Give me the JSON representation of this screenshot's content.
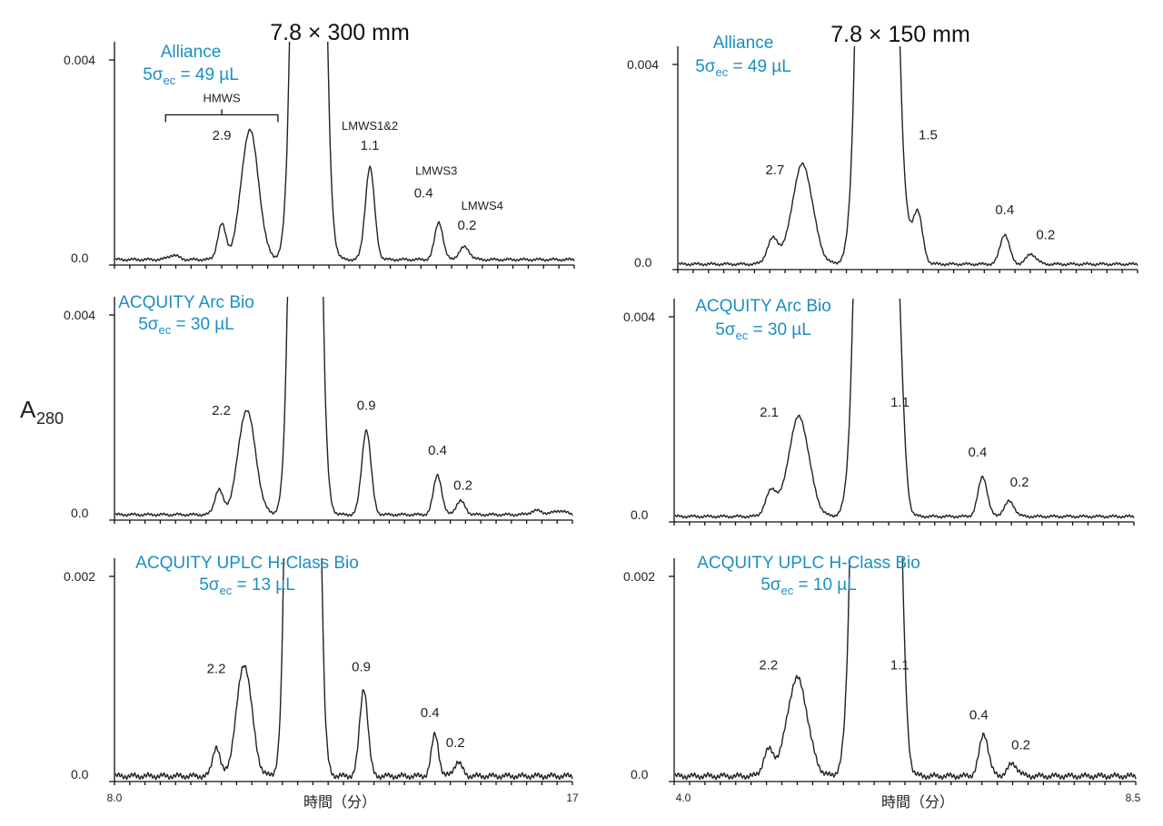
{
  "figure": {
    "y_axis_label": "A",
    "y_axis_label_sub": "280",
    "columns": [
      {
        "title": "7.8 × 300 mm",
        "x_axis_label": "時間（分）",
        "x_ticks": [
          "8.0",
          "17"
        ]
      },
      {
        "title": "7.8 × 150 mm",
        "x_axis_label": "時間（分）",
        "x_ticks": [
          "4.0",
          "8.5"
        ]
      }
    ]
  },
  "chart_data": [
    {
      "type": "line",
      "column": "7.8 × 300 mm",
      "system": "Alliance",
      "dispersion_prefix": "5σ",
      "dispersion_sub": "ec",
      "dispersion_value": " = 49 µL",
      "xlim": [
        8.0,
        17
      ],
      "ylim": [
        0.0,
        0.004
      ],
      "yticks": [
        "0.004",
        "0.0"
      ],
      "peaks": [
        {
          "x": 9.15,
          "height": 9e-05,
          "width": 0.1
        },
        {
          "x": 10.1,
          "height": 0.0007,
          "width": 0.08
        },
        {
          "x": 10.65,
          "height": 0.0026,
          "width": 0.17
        },
        {
          "x": 11.8,
          "height": 0.05,
          "width": 0.17
        },
        {
          "x": 13.0,
          "height": 0.00185,
          "width": 0.09
        },
        {
          "x": 14.35,
          "height": 0.00075,
          "width": 0.08
        },
        {
          "x": 14.85,
          "height": 0.00025,
          "width": 0.1
        }
      ],
      "peak_labels": [
        {
          "text": "2.9",
          "x": 10.1,
          "y": 0.0024
        },
        {
          "text": "LMWS1&2",
          "x": 13.0,
          "y": 0.0026,
          "style": "name"
        },
        {
          "text": "1.1",
          "x": 13.0,
          "y": 0.0022
        },
        {
          "text": "LMWS3",
          "x": 14.3,
          "y": 0.0017,
          "style": "name"
        },
        {
          "text": "0.4",
          "x": 14.05,
          "y": 0.00125
        },
        {
          "text": "LMWS4",
          "x": 15.2,
          "y": 0.001,
          "style": "name"
        },
        {
          "text": "0.2",
          "x": 14.9,
          "y": 0.0006
        }
      ],
      "bracket": {
        "label": "HMWS",
        "x_start": 9.0,
        "x_end": 11.2,
        "y": 0.0029
      }
    },
    {
      "type": "line",
      "column": "7.8 × 150 mm",
      "system": "Alliance",
      "dispersion_prefix": "5σ",
      "dispersion_sub": "ec",
      "dispersion_value": " = 49 µL",
      "xlim": [
        4.0,
        8.5
      ],
      "ylim": [
        0.0,
        0.004
      ],
      "yticks": [
        "0.004",
        "0.0"
      ],
      "peaks": [
        {
          "x": 4.93,
          "height": 0.0005,
          "width": 0.055
        },
        {
          "x": 5.22,
          "height": 0.002,
          "width": 0.1
        },
        {
          "x": 5.95,
          "height": 0.05,
          "width": 0.1
        },
        {
          "x": 6.2,
          "height": 0.0005,
          "width": 0.1
        },
        {
          "x": 6.35,
          "height": 0.0009,
          "width": 0.045
        },
        {
          "x": 7.2,
          "height": 0.0006,
          "width": 0.045
        },
        {
          "x": 7.46,
          "height": 0.0002,
          "width": 0.05
        }
      ],
      "peak_labels": [
        {
          "text": "2.7",
          "x": 4.95,
          "y": 0.0018
        },
        {
          "text": "1.5",
          "x": 6.45,
          "y": 0.0025
        },
        {
          "text": "0.4",
          "x": 7.2,
          "y": 0.001
        },
        {
          "text": "0.2",
          "x": 7.6,
          "y": 0.0005
        }
      ]
    },
    {
      "type": "line",
      "column": "7.8 × 300 mm",
      "system": "ACQUITY Arc Bio",
      "dispersion_prefix": "5σ",
      "dispersion_sub": "ec",
      "dispersion_value": " = 30 µL",
      "xlim": [
        8.0,
        17
      ],
      "ylim": [
        0.0,
        0.004
      ],
      "yticks": [
        "0.004",
        "0.0"
      ],
      "peaks": [
        {
          "x": 10.05,
          "height": 0.0005,
          "width": 0.08
        },
        {
          "x": 10.6,
          "height": 0.0021,
          "width": 0.17
        },
        {
          "x": 11.75,
          "height": 0.05,
          "width": 0.16
        },
        {
          "x": 12.95,
          "height": 0.0017,
          "width": 0.09
        },
        {
          "x": 14.35,
          "height": 0.0008,
          "width": 0.08
        },
        {
          "x": 14.8,
          "height": 0.00027,
          "width": 0.09
        },
        {
          "x": 16.3,
          "height": 8e-05,
          "width": 0.12
        },
        {
          "x": 16.75,
          "height": 8e-05,
          "width": 0.12
        }
      ],
      "peak_labels": [
        {
          "text": "2.2",
          "x": 10.1,
          "y": 0.002
        },
        {
          "text": "0.9",
          "x": 12.95,
          "y": 0.0021
        },
        {
          "text": "0.4",
          "x": 14.35,
          "y": 0.0012
        },
        {
          "text": "0.2",
          "x": 14.85,
          "y": 0.0005
        }
      ]
    },
    {
      "type": "line",
      "column": "7.8 × 150 mm",
      "system": "ACQUITY Arc Bio",
      "dispersion_prefix": "5σ",
      "dispersion_sub": "ec",
      "dispersion_value": " = 30 µL",
      "xlim": [
        4.0,
        8.5
      ],
      "ylim": [
        0.0,
        0.004
      ],
      "yticks": [
        "0.004",
        "0.0"
      ],
      "peaks": [
        {
          "x": 4.95,
          "height": 0.0005,
          "width": 0.055
        },
        {
          "x": 5.22,
          "height": 0.002,
          "width": 0.1
        },
        {
          "x": 5.97,
          "height": 0.05,
          "width": 0.1
        },
        {
          "x": 6.21,
          "height": 0.0015,
          "width": 0.045
        },
        {
          "x": 7.02,
          "height": 0.0008,
          "width": 0.045
        },
        {
          "x": 7.28,
          "height": 0.0003,
          "width": 0.05
        }
      ],
      "peak_labels": [
        {
          "text": "2.1",
          "x": 4.93,
          "y": 0.002
        },
        {
          "text": "1.1",
          "x": 6.21,
          "y": 0.0022
        },
        {
          "text": "0.4",
          "x": 6.97,
          "y": 0.0012
        },
        {
          "text": "0.2",
          "x": 7.38,
          "y": 0.0006
        }
      ]
    },
    {
      "type": "line",
      "column": "7.8 × 300 mm",
      "system": "ACQUITY UPLC H-Class Bio",
      "dispersion_prefix": "5σ",
      "dispersion_sub": "ec",
      "dispersion_value": " = 13 µL",
      "xlim": [
        8.0,
        17
      ],
      "ylim": [
        0.0,
        0.002
      ],
      "yticks": [
        "0.002",
        "0.0"
      ],
      "peaks": [
        {
          "x": 10.0,
          "height": 0.0003,
          "width": 0.07
        },
        {
          "x": 10.55,
          "height": 0.00112,
          "width": 0.15
        },
        {
          "x": 11.7,
          "height": 0.05,
          "width": 0.15
        },
        {
          "x": 12.9,
          "height": 0.00088,
          "width": 0.08
        },
        {
          "x": 14.3,
          "height": 0.00042,
          "width": 0.07
        },
        {
          "x": 14.75,
          "height": 0.00014,
          "width": 0.08
        }
      ],
      "peak_labels": [
        {
          "text": "2.2",
          "x": 10.0,
          "y": 0.00103
        },
        {
          "text": "0.9",
          "x": 12.85,
          "y": 0.00105
        },
        {
          "text": "0.4",
          "x": 14.2,
          "y": 0.00059
        },
        {
          "text": "0.2",
          "x": 14.7,
          "y": 0.00029
        }
      ]
    },
    {
      "type": "line",
      "column": "7.8 × 150 mm",
      "system": "ACQUITY UPLC H-Class Bio",
      "dispersion_prefix": "5σ",
      "dispersion_sub": "ec",
      "dispersion_value": " = 10 µL",
      "xlim": [
        4.0,
        8.5
      ],
      "ylim": [
        0.0,
        0.002
      ],
      "yticks": [
        "0.002",
        "0.0"
      ],
      "peaks": [
        {
          "x": 4.92,
          "height": 0.00025,
          "width": 0.05
        },
        {
          "x": 5.2,
          "height": 0.00098,
          "width": 0.1
        },
        {
          "x": 5.96,
          "height": 0.05,
          "width": 0.1
        },
        {
          "x": 6.2,
          "height": 0.00085,
          "width": 0.045
        },
        {
          "x": 7.02,
          "height": 0.00042,
          "width": 0.045
        },
        {
          "x": 7.3,
          "height": 0.00012,
          "width": 0.05
        }
      ],
      "peak_labels": [
        {
          "text": "2.2",
          "x": 4.92,
          "y": 0.00107
        },
        {
          "text": "1.1",
          "x": 6.2,
          "y": 0.00107
        },
        {
          "text": "0.4",
          "x": 6.97,
          "y": 0.00057
        },
        {
          "text": "0.2",
          "x": 7.38,
          "y": 0.00027
        }
      ]
    }
  ]
}
